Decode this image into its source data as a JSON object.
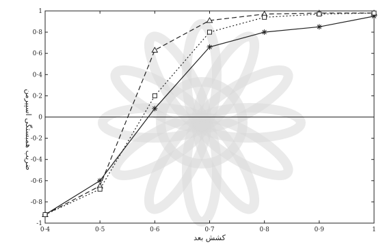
{
  "chart_data": {
    "type": "line",
    "xlabel": "کشش بعد",
    "ylabel": "ضریب همبستگی اسپیرمن",
    "x_ticks": [
      "0·4",
      "0·5",
      "0·6",
      "0·7",
      "0·8",
      "0·9",
      "1"
    ],
    "y_ticks": [
      "1",
      "0·8",
      "0·6",
      "0·4",
      "0·2",
      "0",
      "-0·2",
      "-0·4",
      "-0·6",
      "-0·8",
      "-1"
    ],
    "xlim": [
      0.4,
      1.0
    ],
    "ylim": [
      -1,
      1
    ],
    "x": [
      0.4,
      0.5,
      0.6,
      0.7,
      0.8,
      0.9,
      1.0
    ],
    "grid": false,
    "zero_line": true,
    "series": [
      {
        "marker": "star",
        "line_style": "solid",
        "values": [
          -0.92,
          -0.6,
          0.08,
          0.66,
          0.8,
          0.85,
          0.95
        ]
      },
      {
        "marker": "triangle",
        "line_style": "dashed",
        "values": [
          -0.92,
          -0.65,
          0.63,
          0.91,
          0.97,
          0.98,
          0.98
        ]
      },
      {
        "marker": "square",
        "line_style": "dotted",
        "values": [
          -0.92,
          -0.68,
          0.2,
          0.8,
          0.94,
          0.97,
          0.98
        ]
      }
    ],
    "colors": {
      "line": "#222222",
      "background": "#ffffff",
      "watermark": "#d8d8d8"
    }
  }
}
